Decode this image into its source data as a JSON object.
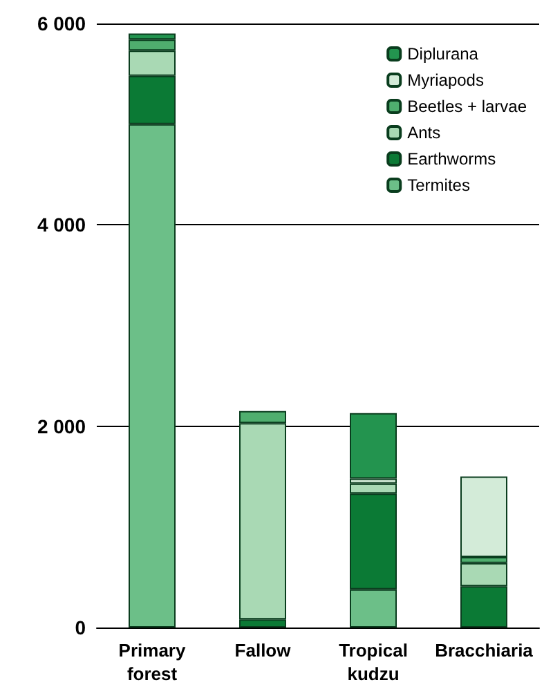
{
  "chart_data": {
    "type": "bar",
    "stacked": true,
    "categories": [
      "Primary\nforest",
      "Fallow",
      "Tropical\nkudzu",
      "Bracchiaria"
    ],
    "series": [
      {
        "name": "Termites",
        "color": "#6cbf88",
        "values": [
          5000,
          0,
          380,
          0
        ]
      },
      {
        "name": "Earthworms",
        "color": "#0b7a35",
        "values": [
          480,
          80,
          950,
          410
        ]
      },
      {
        "name": "Ants",
        "color": "#a9d9b4",
        "values": [
          250,
          1950,
          100,
          230
        ]
      },
      {
        "name": "Beetles + larvae",
        "color": "#4fae6e",
        "values": [
          110,
          120,
          0,
          60
        ]
      },
      {
        "name": "Myriapods",
        "color": "#d3ebd8",
        "values": [
          0,
          0,
          50,
          800
        ]
      },
      {
        "name": "Diplurana",
        "color": "#23944f",
        "values": [
          60,
          0,
          650,
          0
        ]
      }
    ],
    "ylim": [
      0,
      6000
    ],
    "yticks": [
      {
        "value": 0,
        "label": "0"
      },
      {
        "value": 2000,
        "label": "2 000"
      },
      {
        "value": 4000,
        "label": "4 000"
      },
      {
        "value": 6000,
        "label": "6 000"
      }
    ],
    "grid": "y",
    "legend": "top right"
  }
}
